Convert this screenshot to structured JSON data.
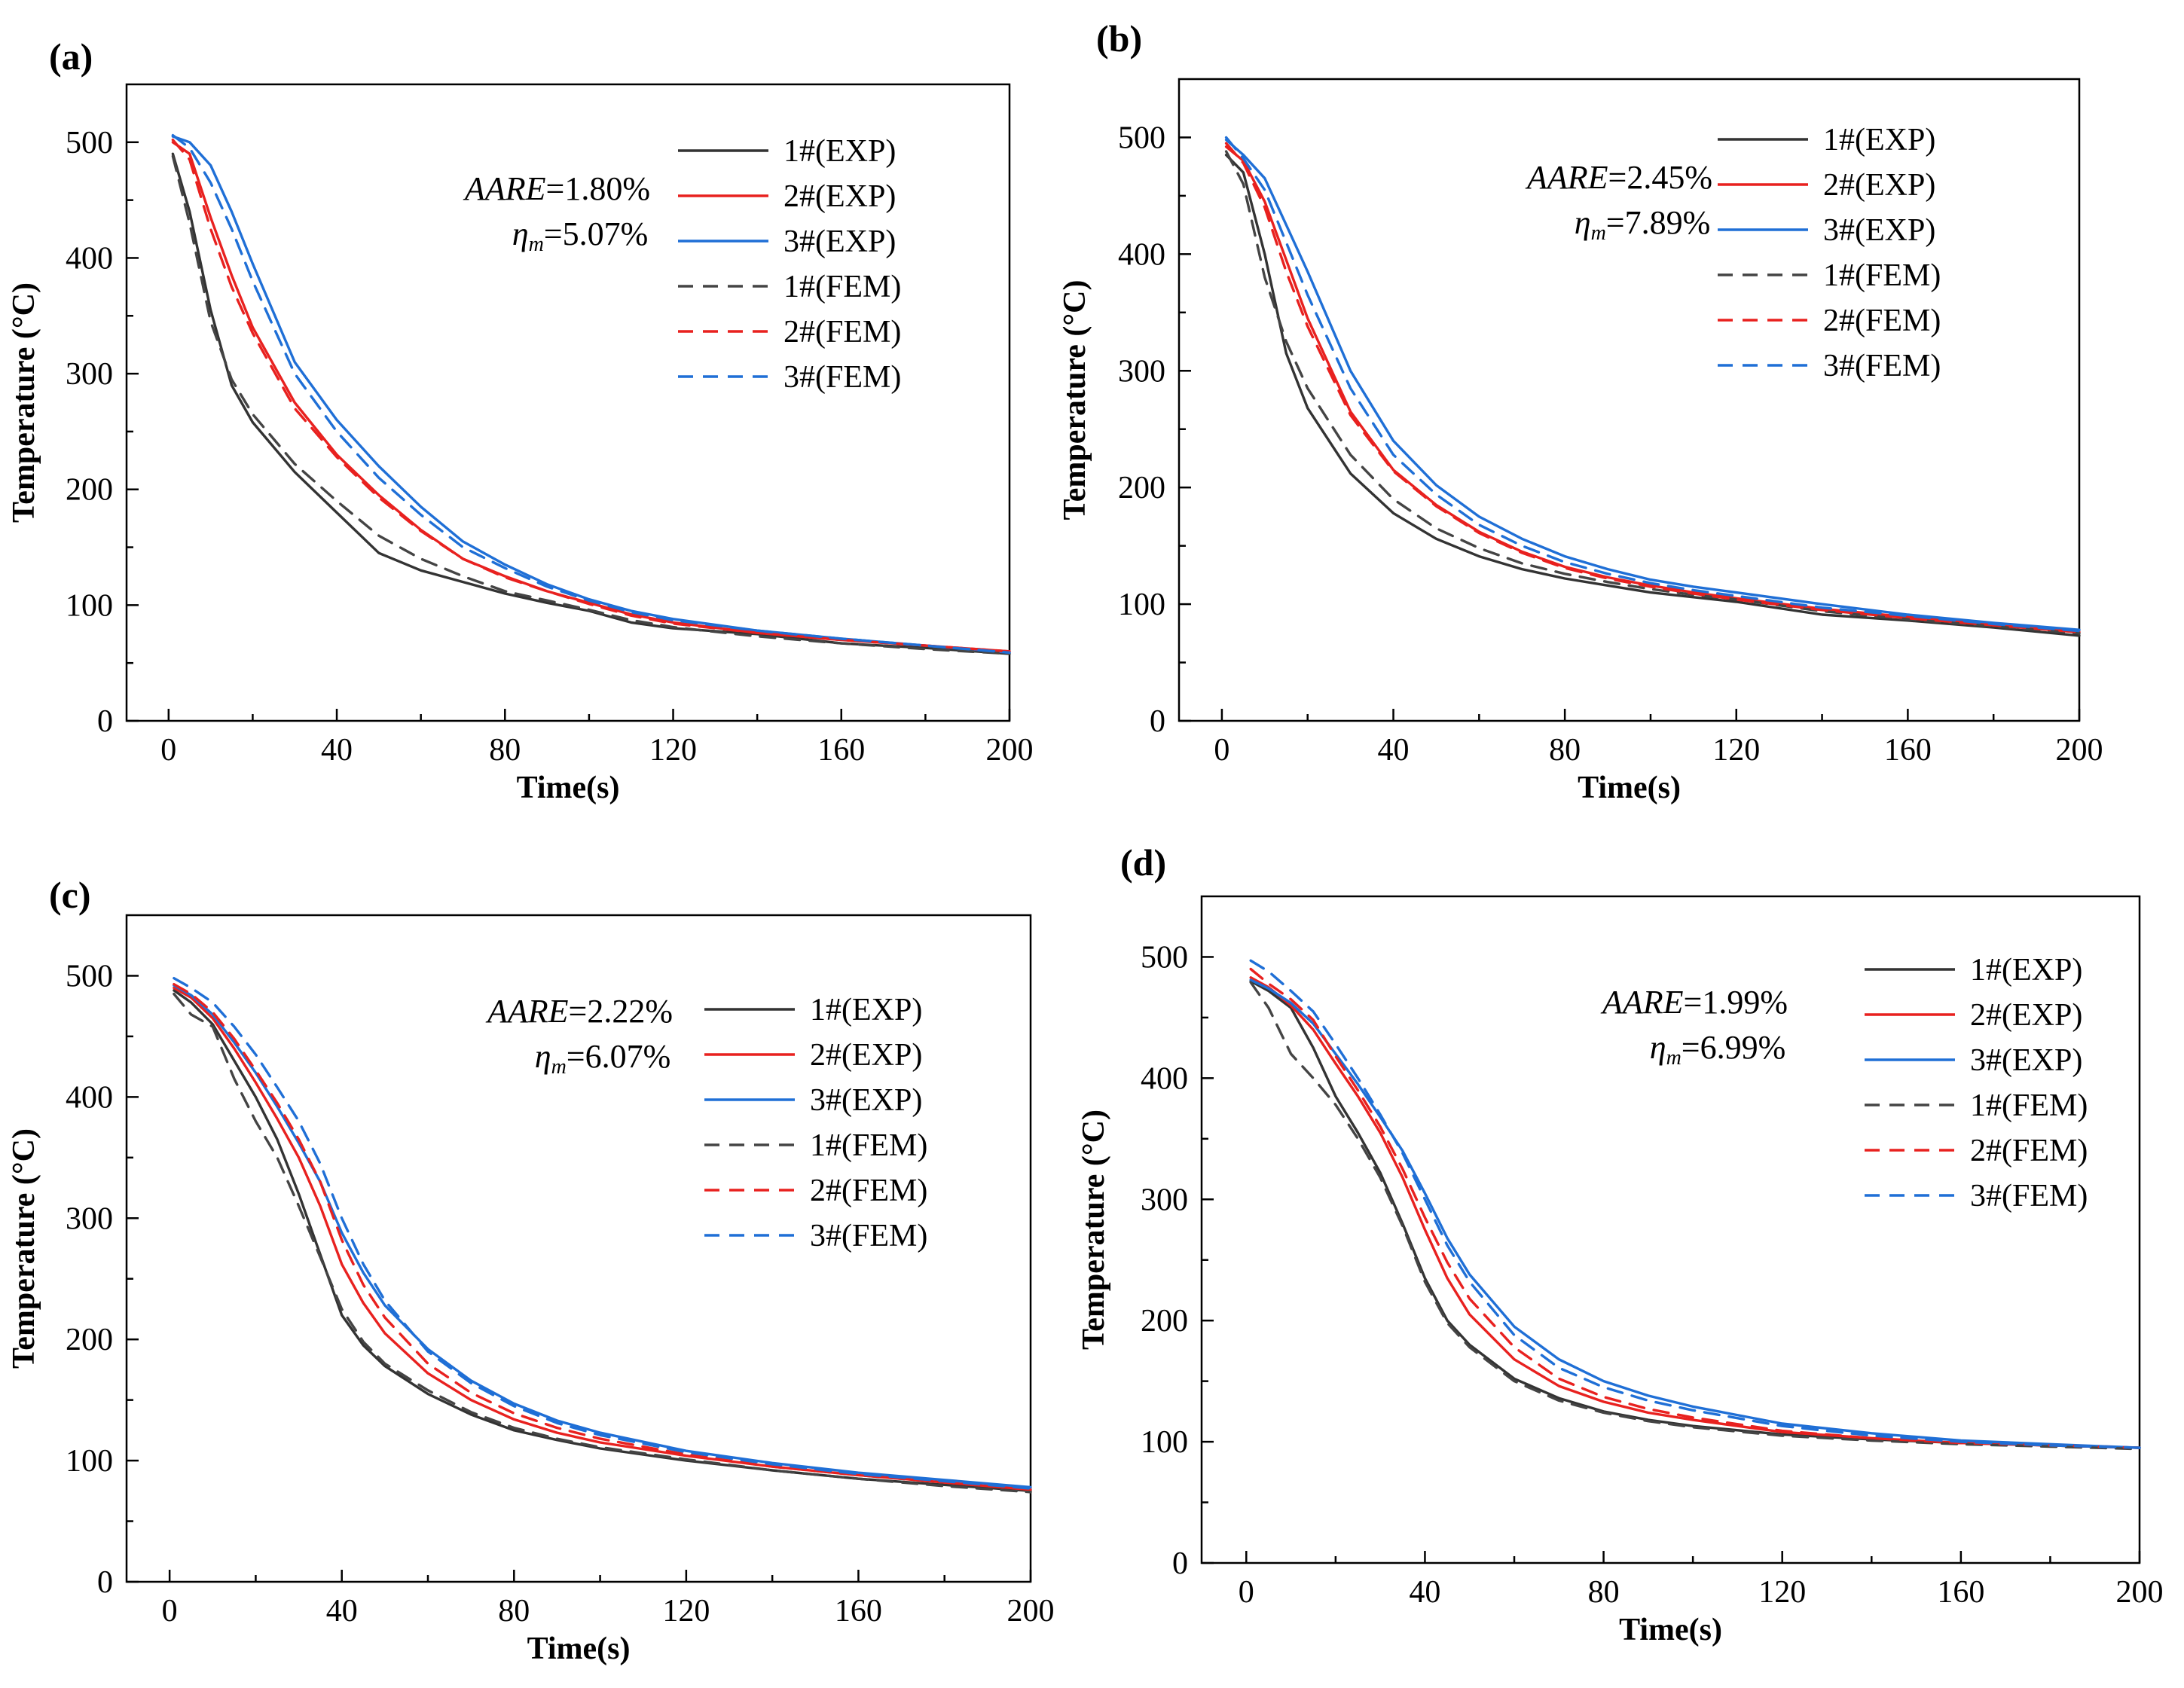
{
  "figure": {
    "panels": [
      "(a)",
      "(b)",
      "(c)",
      "(d)"
    ]
  },
  "chart_data": [
    {
      "type": "line",
      "panel_label": "(a)",
      "xlabel": "Time(s)",
      "ylabel": "Temperature (°C)",
      "xlim": [
        -10,
        200
      ],
      "ylim": [
        0,
        550
      ],
      "xticks": [
        0,
        40,
        80,
        120,
        160,
        200
      ],
      "yticks": [
        0,
        100,
        200,
        300,
        400,
        500
      ],
      "annotation": {
        "aare_label": "AARE",
        "aare_value": "=1.80%",
        "eta_symbol": "η",
        "eta_sub": "m",
        "eta_value": "=5.07%"
      },
      "x": [
        1,
        5,
        10,
        15,
        20,
        30,
        40,
        50,
        60,
        70,
        80,
        90,
        100,
        110,
        120,
        140,
        160,
        180,
        200
      ],
      "series": [
        {
          "name": "1#(EXP)",
          "color": "#333333",
          "dash": "solid",
          "values": [
            490,
            440,
            355,
            290,
            258,
            215,
            180,
            145,
            130,
            120,
            110,
            102,
            95,
            85,
            80,
            75,
            67,
            63,
            58
          ]
        },
        {
          "name": "2#(EXP)",
          "color": "#e8211f",
          "dash": "solid",
          "values": [
            500,
            490,
            435,
            385,
            340,
            275,
            230,
            195,
            165,
            140,
            125,
            112,
            102,
            92,
            85,
            76,
            70,
            65,
            60
          ]
        },
        {
          "name": "3#(EXP)",
          "color": "#1f6fd6",
          "dash": "solid",
          "values": [
            505,
            500,
            480,
            440,
            395,
            310,
            260,
            220,
            185,
            155,
            135,
            118,
            105,
            95,
            88,
            78,
            71,
            65,
            59
          ]
        },
        {
          "name": "1#(FEM)",
          "color": "#444444",
          "dash": "dashed",
          "values": [
            488,
            430,
            345,
            295,
            265,
            222,
            190,
            160,
            140,
            125,
            112,
            104,
            96,
            87,
            81,
            73,
            67,
            62,
            58
          ]
        },
        {
          "name": "2#(FEM)",
          "color": "#e8211f",
          "dash": "dashed",
          "values": [
            502,
            485,
            425,
            375,
            335,
            270,
            228,
            193,
            164,
            140,
            124,
            112,
            101,
            91,
            84,
            76,
            70,
            65,
            60
          ]
        },
        {
          "name": "3#(FEM)",
          "color": "#1f6fd6",
          "dash": "dashed",
          "values": [
            506,
            495,
            465,
            425,
            380,
            300,
            250,
            210,
            178,
            150,
            132,
            116,
            104,
            94,
            87,
            78,
            71,
            65,
            59
          ]
        }
      ]
    },
    {
      "type": "line",
      "panel_label": "(b)",
      "xlabel": "Time(s)",
      "ylabel": "Temperature (°C)",
      "xlim": [
        -10,
        200
      ],
      "ylim": [
        0,
        550
      ],
      "xticks": [
        0,
        40,
        80,
        120,
        160,
        200
      ],
      "yticks": [
        0,
        100,
        200,
        300,
        400,
        500
      ],
      "annotation": {
        "aare_label": "AARE",
        "aare_value": "=2.45%",
        "eta_symbol": "η",
        "eta_sub": "m",
        "eta_value": "=7.89%"
      },
      "x": [
        1,
        5,
        10,
        15,
        20,
        30,
        40,
        50,
        60,
        70,
        80,
        90,
        100,
        110,
        120,
        140,
        160,
        180,
        200
      ],
      "series": [
        {
          "name": "1#(EXP)",
          "color": "#333333",
          "dash": "solid",
          "values": [
            485,
            470,
            400,
            315,
            268,
            212,
            178,
            156,
            141,
            130,
            122,
            116,
            110,
            106,
            102,
            91,
            86,
            80,
            73
          ]
        },
        {
          "name": "2#(EXP)",
          "color": "#e8211f",
          "dash": "solid",
          "values": [
            492,
            480,
            445,
            395,
            345,
            265,
            215,
            185,
            162,
            145,
            132,
            123,
            116,
            110,
            105,
            96,
            89,
            82,
            76
          ]
        },
        {
          "name": "3#(EXP)",
          "color": "#1f6fd6",
          "dash": "solid",
          "values": [
            498,
            485,
            465,
            425,
            385,
            300,
            240,
            202,
            175,
            156,
            141,
            130,
            121,
            115,
            110,
            100,
            91,
            84,
            78
          ]
        },
        {
          "name": "1#(FEM)",
          "color": "#444444",
          "dash": "dashed",
          "values": [
            488,
            460,
            380,
            325,
            285,
            228,
            190,
            165,
            148,
            135,
            126,
            119,
            113,
            108,
            104,
            94,
            87,
            81,
            75
          ]
        },
        {
          "name": "2#(FEM)",
          "color": "#e8211f",
          "dash": "dashed",
          "values": [
            495,
            478,
            440,
            385,
            338,
            262,
            214,
            184,
            161,
            144,
            131,
            122,
            115,
            109,
            104,
            95,
            88,
            82,
            76
          ]
        },
        {
          "name": "3#(FEM)",
          "color": "#1f6fd6",
          "dash": "dashed",
          "values": [
            500,
            482,
            455,
            410,
            365,
            285,
            228,
            194,
            168,
            150,
            136,
            126,
            118,
            112,
            107,
            97,
            90,
            83,
            77
          ]
        }
      ]
    },
    {
      "type": "line",
      "panel_label": "(c)",
      "xlabel": "Time(s)",
      "ylabel": "Temperature (°C)",
      "xlim": [
        -10,
        200
      ],
      "ylim": [
        0,
        550
      ],
      "xticks": [
        0,
        40,
        80,
        120,
        160,
        200
      ],
      "yticks": [
        0,
        100,
        200,
        300,
        400,
        500
      ],
      "annotation": {
        "aare_label": "AARE",
        "aare_value": "=2.22%",
        "eta_symbol": "η",
        "eta_sub": "m",
        "eta_value": "=6.07%"
      },
      "x": [
        1,
        5,
        10,
        15,
        20,
        25,
        30,
        35,
        40,
        45,
        50,
        60,
        70,
        80,
        90,
        100,
        120,
        140,
        160,
        180,
        200
      ],
      "series": [
        {
          "name": "1#(EXP)",
          "color": "#333333",
          "dash": "solid",
          "values": [
            488,
            478,
            460,
            430,
            400,
            365,
            320,
            270,
            220,
            195,
            178,
            155,
            138,
            125,
            117,
            110,
            100,
            92,
            85,
            80,
            75
          ]
        },
        {
          "name": "2#(EXP)",
          "color": "#e8211f",
          "dash": "solid",
          "values": [
            490,
            482,
            465,
            440,
            412,
            382,
            350,
            310,
            262,
            230,
            205,
            172,
            150,
            134,
            123,
            115,
            104,
            95,
            88,
            82,
            76
          ]
        },
        {
          "name": "3#(EXP)",
          "color": "#1f6fd6",
          "dash": "solid",
          "values": [
            492,
            484,
            468,
            445,
            420,
            392,
            362,
            330,
            288,
            255,
            228,
            192,
            166,
            147,
            133,
            123,
            108,
            98,
            90,
            84,
            78
          ]
        },
        {
          "name": "1#(FEM)",
          "color": "#444444",
          "dash": "dashed",
          "values": [
            485,
            468,
            458,
            415,
            380,
            350,
            310,
            268,
            225,
            198,
            180,
            158,
            140,
            127,
            118,
            111,
            101,
            92,
            85,
            79,
            74
          ]
        },
        {
          "name": "2#(FEM)",
          "color": "#e8211f",
          "dash": "dashed",
          "values": [
            493,
            485,
            470,
            448,
            422,
            395,
            365,
            330,
            282,
            245,
            218,
            180,
            156,
            139,
            127,
            118,
            105,
            95,
            88,
            82,
            76
          ]
        },
        {
          "name": "3#(FEM)",
          "color": "#1f6fd6",
          "dash": "dashed",
          "values": [
            498,
            490,
            478,
            458,
            435,
            408,
            380,
            345,
            300,
            262,
            232,
            190,
            164,
            145,
            131,
            121,
            107,
            97,
            89,
            83,
            77
          ]
        }
      ]
    },
    {
      "type": "line",
      "panel_label": "(d)",
      "xlabel": "Time(s)",
      "ylabel": "Temperature (°C)",
      "xlim": [
        -10,
        200
      ],
      "ylim": [
        0,
        550
      ],
      "xticks": [
        0,
        40,
        80,
        120,
        160,
        200
      ],
      "yticks": [
        0,
        100,
        200,
        300,
        400,
        500
      ],
      "annotation": {
        "aare_label": "AARE",
        "aare_value": "=1.99%",
        "eta_symbol": "η",
        "eta_sub": "m",
        "eta_value": "=6.99%"
      },
      "x": [
        1,
        5,
        10,
        15,
        20,
        25,
        30,
        35,
        40,
        45,
        50,
        60,
        70,
        80,
        90,
        100,
        120,
        140,
        160,
        180,
        200
      ],
      "series": [
        {
          "name": "1#(EXP)",
          "color": "#333333",
          "dash": "solid",
          "values": [
            480,
            472,
            458,
            425,
            385,
            355,
            322,
            280,
            235,
            200,
            180,
            152,
            136,
            125,
            118,
            113,
            106,
            102,
            99,
            97,
            95
          ]
        },
        {
          "name": "2#(EXP)",
          "color": "#e8211f",
          "dash": "solid",
          "values": [
            483,
            475,
            460,
            440,
            412,
            385,
            355,
            318,
            275,
            235,
            205,
            168,
            146,
            133,
            124,
            118,
            108,
            103,
            99,
            97,
            95
          ]
        },
        {
          "name": "3#(EXP)",
          "color": "#1f6fd6",
          "dash": "solid",
          "values": [
            481,
            474,
            462,
            445,
            420,
            395,
            368,
            340,
            305,
            268,
            238,
            195,
            168,
            150,
            138,
            129,
            115,
            107,
            101,
            98,
            95
          ]
        },
        {
          "name": "1#(FEM)",
          "color": "#444444",
          "dash": "dashed",
          "values": [
            479,
            458,
            420,
            400,
            378,
            350,
            318,
            278,
            232,
            198,
            178,
            150,
            134,
            124,
            117,
            112,
            105,
            101,
            98,
            96,
            94
          ]
        },
        {
          "name": "2#(FEM)",
          "color": "#e8211f",
          "dash": "dashed",
          "values": [
            490,
            478,
            465,
            448,
            418,
            390,
            360,
            325,
            285,
            248,
            218,
            178,
            152,
            137,
            127,
            120,
            109,
            103,
            99,
            97,
            95
          ]
        },
        {
          "name": "3#(FEM)",
          "color": "#1f6fd6",
          "dash": "dashed",
          "values": [
            497,
            488,
            472,
            455,
            428,
            400,
            370,
            338,
            300,
            262,
            232,
            188,
            161,
            145,
            134,
            126,
            113,
            105,
            100,
            97,
            95
          ]
        }
      ]
    }
  ]
}
